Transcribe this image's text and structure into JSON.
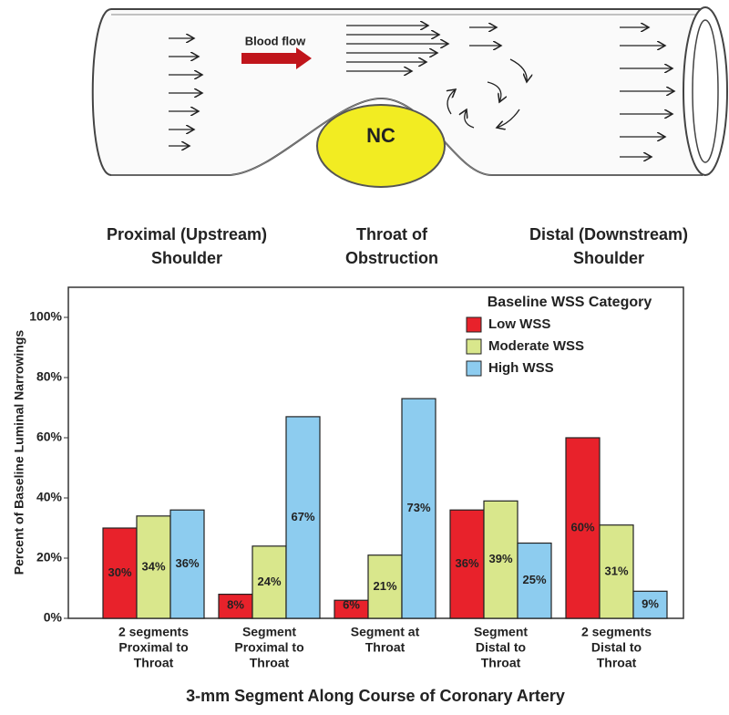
{
  "diagram": {
    "flow_label": "Blood flow",
    "plaque_label": "NC",
    "region_labels": [
      [
        "Proximal (Upstream)",
        "Shoulder"
      ],
      [
        "Throat of",
        "Obstruction"
      ],
      [
        "Distal (Downstream)",
        "Shoulder"
      ]
    ]
  },
  "chart_data": {
    "type": "bar",
    "x_label": "3-mm Segment Along Course of Coronary Artery",
    "y_label": "Percent of Baseline Luminal Narrowings",
    "legend_title": "Baseline WSS Category",
    "legend_position": "upper right",
    "categories": [
      [
        "2 segments",
        "Proximal to",
        "Throat"
      ],
      [
        "Segment",
        "Proximal to",
        "Throat"
      ],
      [
        "Segment at",
        "Throat"
      ],
      [
        "Segment",
        "Distal to",
        "Throat"
      ],
      [
        "2 segments",
        "Distal to",
        "Throat"
      ]
    ],
    "series": [
      {
        "name": "Low WSS",
        "color": "#e8222b",
        "values": [
          30,
          8,
          6,
          36,
          60
        ],
        "value_labels": [
          "30%",
          "8%",
          "6%",
          "36%",
          "60%"
        ]
      },
      {
        "name": "Moderate WSS",
        "color": "#d9e78c",
        "values": [
          34,
          24,
          21,
          39,
          31
        ],
        "value_labels": [
          "34%",
          "24%",
          "21%",
          "39%",
          "31%"
        ]
      },
      {
        "name": "High WSS",
        "color": "#8dccef",
        "values": [
          36,
          67,
          73,
          25,
          9
        ],
        "value_labels": [
          "36%",
          "67%",
          "73%",
          "25%",
          "9%"
        ]
      }
    ],
    "ylim": [
      0,
      110
    ],
    "yticks": [
      {
        "value": 0,
        "label": "0%"
      },
      {
        "value": 20,
        "label": "20%"
      },
      {
        "value": 40,
        "label": "40%"
      },
      {
        "value": 60,
        "label": "60%"
      },
      {
        "value": 80,
        "label": "80%"
      },
      {
        "value": 100,
        "label": "100%"
      }
    ],
    "grid": false
  }
}
